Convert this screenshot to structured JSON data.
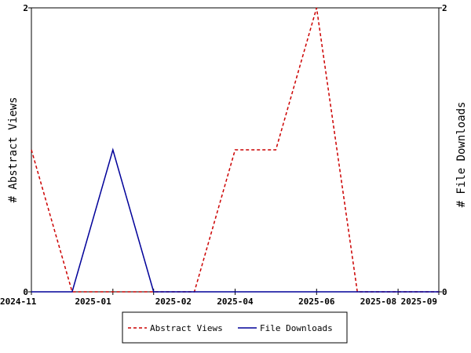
{
  "chart_data": {
    "type": "line",
    "x": [
      "2024-11",
      "2024-12",
      "2025-01",
      "2025-02",
      "2025-03",
      "2025-04",
      "2025-05",
      "2025-06",
      "2025-07",
      "2025-08",
      "2025-09"
    ],
    "x_tick_labels": [
      "2024-11",
      "2025-01",
      "2025-02",
      "2025-04",
      "2025-06",
      "2025-08",
      "2025-09"
    ],
    "series": [
      {
        "name": "Abstract Views",
        "axis": "left",
        "color": "#cc0000",
        "dash": "dashed",
        "values": [
          1,
          0,
          0,
          0,
          0,
          1,
          1,
          2,
          0,
          0,
          0
        ]
      },
      {
        "name": "File Downloads",
        "axis": "right",
        "color": "#000099",
        "dash": "solid",
        "values": [
          0,
          0,
          1,
          0,
          0,
          0,
          0,
          0,
          0,
          0,
          0
        ]
      }
    ],
    "ylabel_left": "# Abstract Views",
    "ylabel_right": "# File Downloads",
    "ylim_left": [
      0,
      2
    ],
    "ylim_right": [
      0,
      2
    ],
    "y_ticks_left": [
      "0",
      "2"
    ],
    "y_ticks_right": [
      "0",
      "2"
    ],
    "legend_position": "bottom-center",
    "grid": false
  }
}
